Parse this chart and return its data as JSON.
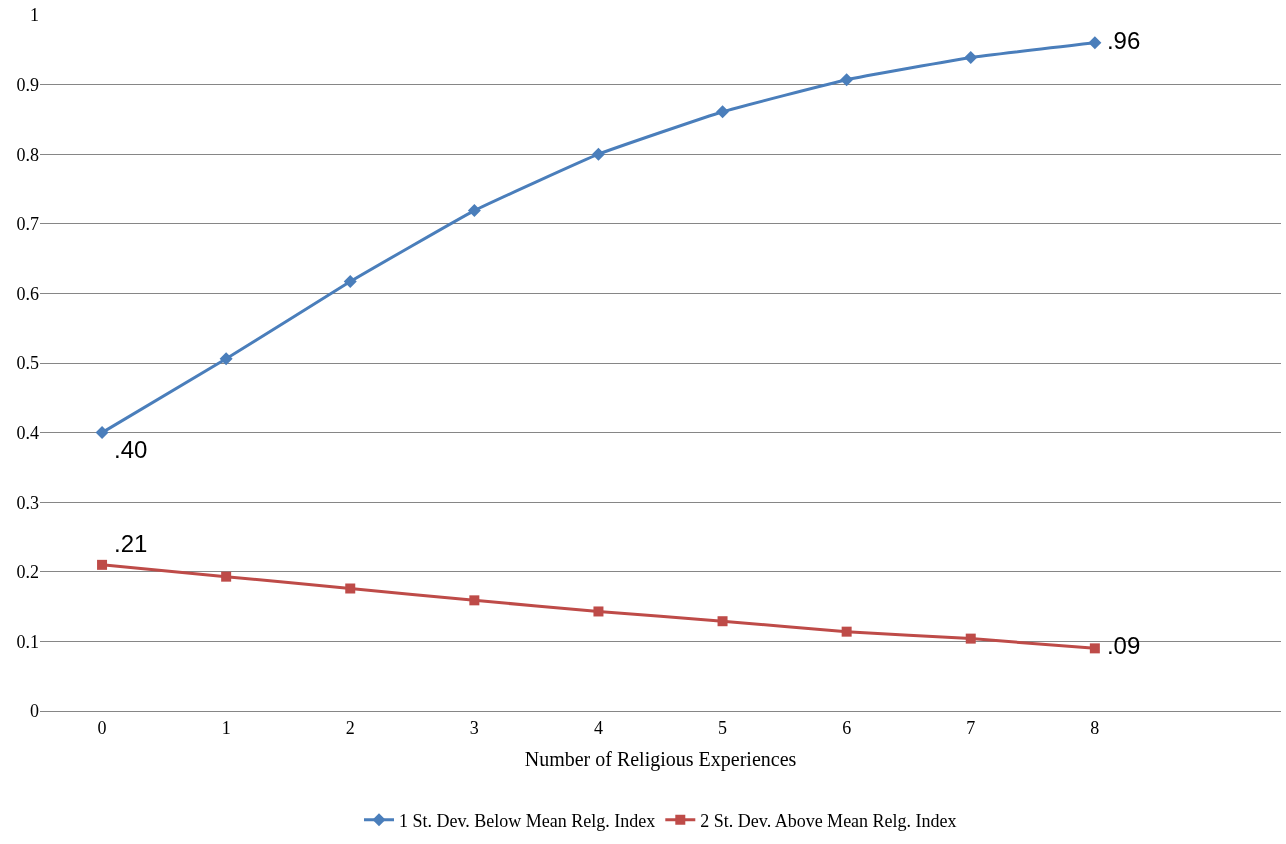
{
  "chart_data": {
    "type": "line",
    "xlabel": "Number of Religious Experiences",
    "categories": [
      "0",
      "1",
      "2",
      "3",
      "4",
      "5",
      "6",
      "7",
      "8",
      null
    ],
    "series": [
      {
        "name": "1 St. Dev. Below Mean Relg. Index",
        "color": "#4a7ebb",
        "marker": "diamond",
        "values": [
          0.4,
          0.506,
          0.617,
          0.719,
          0.8,
          0.861,
          0.907,
          0.939,
          0.96,
          null
        ],
        "value_labels": [
          ".40",
          null,
          null,
          null,
          null,
          null,
          null,
          null,
          ".96",
          null
        ]
      },
      {
        "name": "2 St. Dev. Above Mean Relg. Index",
        "color": "#be4b48",
        "marker": "square",
        "values": [
          0.21,
          0.193,
          0.176,
          0.159,
          0.143,
          0.129,
          0.114,
          0.104,
          0.09,
          null
        ],
        "value_labels": [
          ".21",
          null,
          null,
          null,
          null,
          null,
          null,
          null,
          ".09",
          null
        ]
      }
    ],
    "ylim": [
      0,
      1
    ],
    "yticks": [
      0,
      0.1,
      0.2,
      0.3,
      0.4,
      0.5,
      0.6,
      0.7,
      0.8,
      0.9,
      1
    ],
    "grid": "y",
    "legend": "bottom",
    "line_style": "solid"
  }
}
